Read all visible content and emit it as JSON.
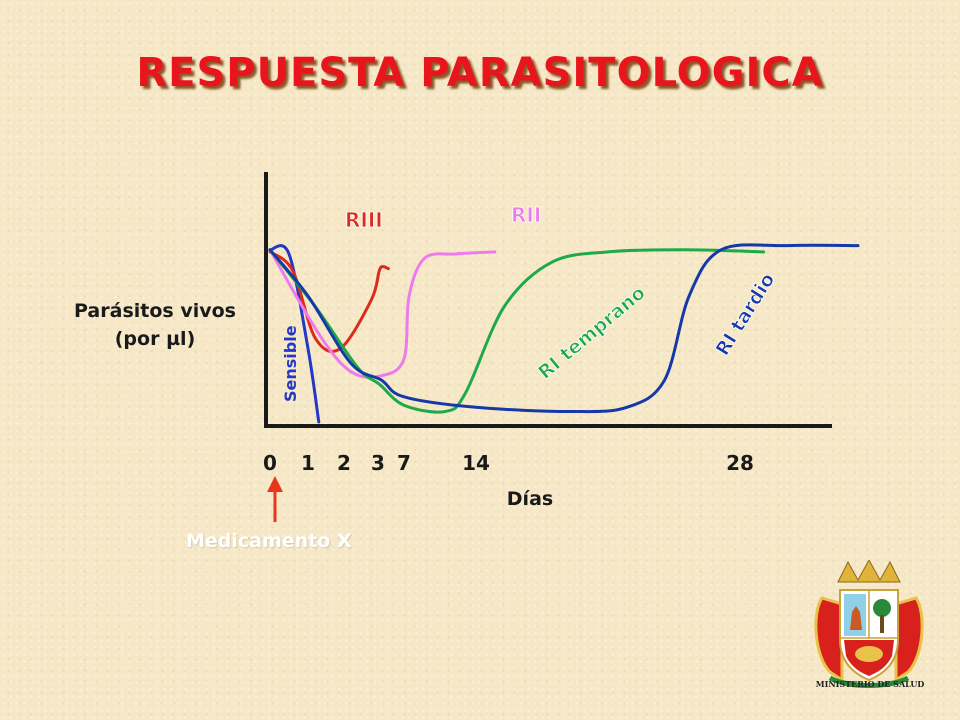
{
  "title": "RESPUESTA PARASITOLOGICA",
  "ylabel_line1": "Parásitos vivos",
  "ylabel_line2": "(por µl)",
  "xlabel": "Días",
  "drug_label": "Medicamento X",
  "ministry": "MINISTERIO DE SALUD",
  "colors": {
    "title": "#e8161c",
    "riii": "#dc2a1c",
    "rii": "#ee7aee",
    "ri_temprano": "#1faa4a",
    "ri_tardio": "#1638a8",
    "sensible": "#2438c8",
    "arrow": "#e8361c"
  },
  "chart_data": {
    "type": "line",
    "title": "RESPUESTA PARASITOLOGICA",
    "xlabel": "Días",
    "ylabel": "Parásitos vivos (por µl)",
    "x_ticks": [
      "0",
      "1",
      "2",
      "3",
      "7",
      "14",
      "28"
    ],
    "series": [
      {
        "name": "Sensible",
        "key": "sensible",
        "label": "Sensible",
        "points": [
          [
            0,
            0.82
          ],
          [
            0.5,
            0.8
          ],
          [
            1,
            0.35
          ],
          [
            1.3,
            0.0
          ]
        ]
      },
      {
        "name": "RIII",
        "key": "riii",
        "label": "RIII",
        "points": [
          [
            0,
            0.81
          ],
          [
            0.6,
            0.72
          ],
          [
            1.2,
            0.4
          ],
          [
            1.9,
            0.35
          ],
          [
            2.8,
            0.58
          ],
          [
            3.2,
            0.72
          ],
          [
            3.8,
            0.74
          ],
          [
            4.6,
            0.73
          ]
        ]
      },
      {
        "name": "RII",
        "key": "rii",
        "label": "RII",
        "points": [
          [
            0,
            0.82
          ],
          [
            1.3,
            0.42
          ],
          [
            2.2,
            0.24
          ],
          [
            3.5,
            0.22
          ],
          [
            7,
            0.3
          ],
          [
            7.5,
            0.6
          ],
          [
            9,
            0.78
          ],
          [
            12,
            0.8
          ],
          [
            15,
            0.81
          ]
        ]
      },
      {
        "name": "RI temprano",
        "key": "ri_temprano",
        "label": "RI temprano",
        "points": [
          [
            0,
            0.82
          ],
          [
            1.2,
            0.55
          ],
          [
            2.4,
            0.26
          ],
          [
            3.2,
            0.18
          ],
          [
            7,
            0.08
          ],
          [
            11,
            0.05
          ],
          [
            13,
            0.14
          ],
          [
            15.5,
            0.55
          ],
          [
            18,
            0.76
          ],
          [
            21,
            0.81
          ],
          [
            25,
            0.82
          ],
          [
            29,
            0.81
          ]
        ]
      },
      {
        "name": "RI tardio",
        "key": "ri_tardio",
        "label": "RI tardio",
        "points": [
          [
            0,
            0.82
          ],
          [
            1,
            0.6
          ],
          [
            2.2,
            0.28
          ],
          [
            3.5,
            0.2
          ],
          [
            7,
            0.12
          ],
          [
            14,
            0.07
          ],
          [
            19,
            0.05
          ],
          [
            22,
            0.07
          ],
          [
            24,
            0.2
          ],
          [
            25.3,
            0.6
          ],
          [
            27,
            0.82
          ],
          [
            30,
            0.84
          ],
          [
            33,
            0.84
          ]
        ]
      }
    ],
    "annotation": "Medicamento X"
  }
}
